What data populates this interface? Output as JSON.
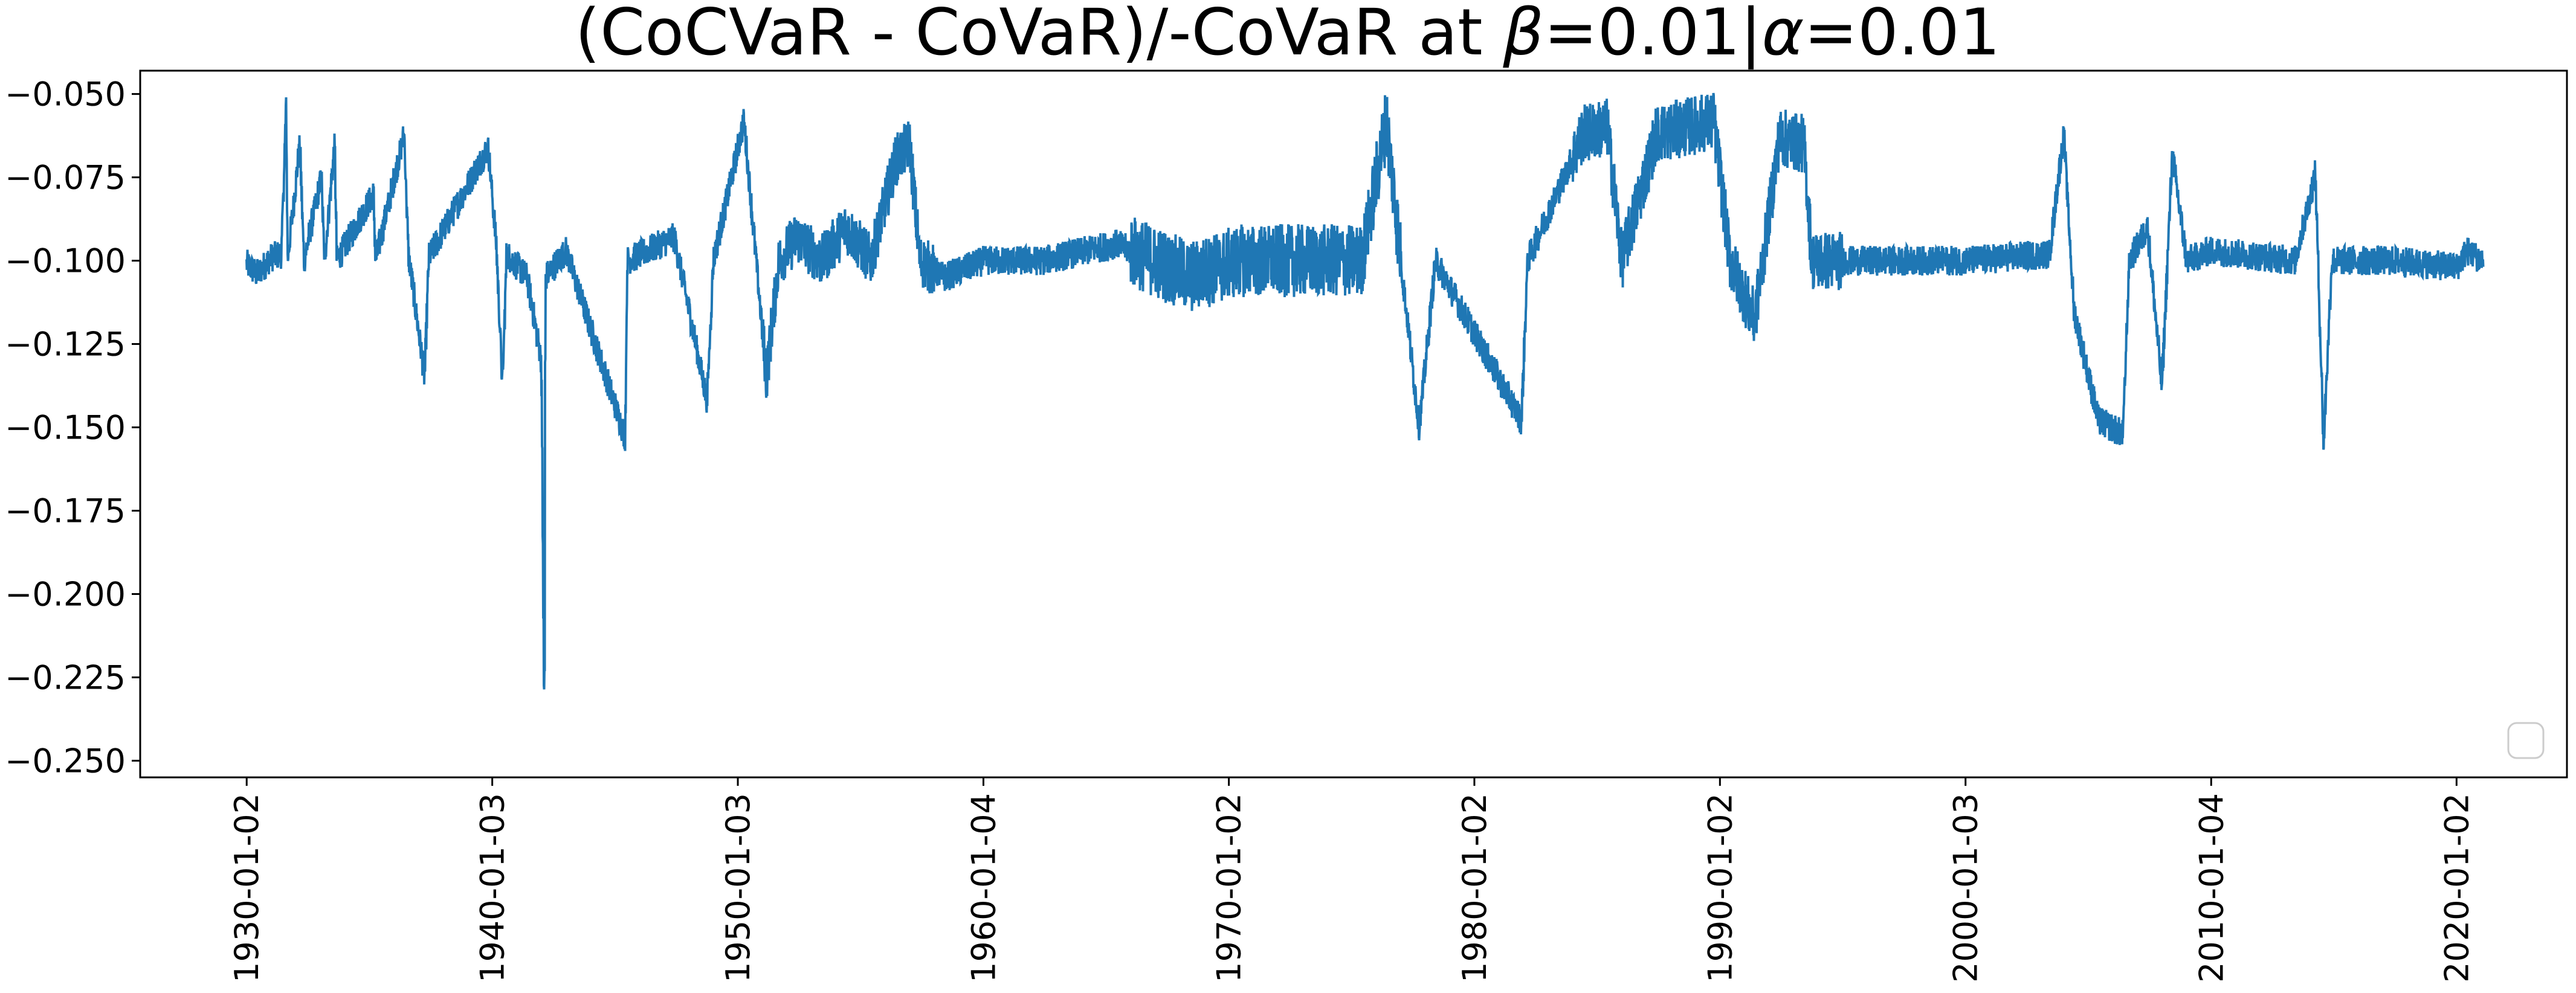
{
  "chart_data": {
    "type": "line",
    "title": "(CoCVaR - CoVaR)/-CoVaR at β=0.01|α=0.01",
    "title_parts": {
      "prefix": "(CoCVaR - CoVaR)/-CoVaR at ",
      "beta_symbol": "β",
      "beta_value": "=0.01|",
      "alpha_symbol": "α",
      "alpha_value": "=0.01"
    },
    "xlabel": "",
    "ylabel": "",
    "ylim": [
      -0.255,
      -0.043
    ],
    "xlim": [
      "1925-09-01",
      "2024-07-01"
    ],
    "grid": false,
    "legend": "bottom-right (empty)",
    "line_color": "#1f77b4",
    "y_ticks": [
      -0.05,
      -0.075,
      -0.1,
      -0.125,
      -0.15,
      -0.175,
      -0.2,
      -0.225,
      -0.25
    ],
    "y_tick_labels": [
      "−0.050",
      "−0.075",
      "−0.100",
      "−0.125",
      "−0.150",
      "−0.175",
      "−0.200",
      "−0.225",
      "−0.250"
    ],
    "x_ticks": [
      "1930-01-02",
      "1940-01-03",
      "1950-01-03",
      "1960-01-04",
      "1970-01-02",
      "1980-01-02",
      "1990-01-02",
      "2000-01-03",
      "2010-01-04",
      "2020-01-02"
    ],
    "series": [
      {
        "name": "",
        "x_range": [
          "1929-12-31",
          "2021-01-29"
        ],
        "baseline": -0.1,
        "notes": "daily series; approx band around baseline with excursions listed as key points",
        "points": [
          [
            "1929-12-31",
            -0.101
          ],
          [
            "1930-06-01",
            -0.104
          ],
          [
            "1931-01-01",
            -0.099
          ],
          [
            "1931-06-01",
            -0.098
          ],
          [
            "1931-08-10",
            -0.053
          ],
          [
            "1931-09-01",
            -0.1
          ],
          [
            "1932-03-01",
            -0.065
          ],
          [
            "1932-05-01",
            -0.1
          ],
          [
            "1933-01-15",
            -0.075
          ],
          [
            "1933-03-01",
            -0.1
          ],
          [
            "1933-08-01",
            -0.065
          ],
          [
            "1933-09-01",
            -0.1
          ],
          [
            "1935-03-01",
            -0.08
          ],
          [
            "1935-04-01",
            -0.1
          ],
          [
            "1936-06-01",
            -0.062
          ],
          [
            "1936-08-01",
            -0.098
          ],
          [
            "1937-04-01",
            -0.135
          ],
          [
            "1937-06-01",
            -0.099
          ],
          [
            "1939-11-01",
            -0.066
          ],
          [
            "1940-03-01",
            -0.095
          ],
          [
            "1940-06-01",
            -0.138
          ],
          [
            "1940-08-01",
            -0.098
          ],
          [
            "1941-06-01",
            -0.105
          ],
          [
            "1942-01-01",
            -0.13
          ],
          [
            "1942-02-15",
            -0.246
          ],
          [
            "1942-03-01",
            -0.105
          ],
          [
            "1943-01-01",
            -0.097
          ],
          [
            "1945-06-01",
            -0.153
          ],
          [
            "1945-07-01",
            -0.1
          ],
          [
            "1947-06-01",
            -0.093
          ],
          [
            "1948-10-01",
            -0.142
          ],
          [
            "1949-01-01",
            -0.1
          ],
          [
            "1950-04-01",
            -0.058
          ],
          [
            "1950-10-01",
            -0.1
          ],
          [
            "1951-03-01",
            -0.135
          ],
          [
            "1951-09-01",
            -0.1
          ],
          [
            "1952-06-01",
            -0.093
          ],
          [
            "1953-06-01",
            -0.1
          ],
          [
            "1954-06-01",
            -0.09
          ],
          [
            "1955-06-01",
            -0.1
          ],
          [
            "1956-06-01",
            -0.07
          ],
          [
            "1957-01-01",
            -0.065
          ],
          [
            "1957-06-01",
            -0.1
          ],
          [
            "1958-06-01",
            -0.105
          ],
          [
            "1960-01-04",
            -0.1
          ],
          [
            "1962-06-01",
            -0.1
          ],
          [
            "1965-06-01",
            -0.095
          ],
          [
            "1968-06-01",
            -0.105
          ],
          [
            "1970-06-01",
            -0.1
          ],
          [
            "1973-06-01",
            -0.1
          ],
          [
            "1975-06-01",
            -0.1
          ],
          [
            "1976-06-01",
            -0.058
          ],
          [
            "1977-01-01",
            -0.1
          ],
          [
            "1977-10-01",
            -0.15
          ],
          [
            "1978-06-01",
            -0.1
          ],
          [
            "1981-12-01",
            -0.148
          ],
          [
            "1982-03-01",
            -0.1
          ],
          [
            "1984-06-01",
            -0.062
          ],
          [
            "1985-06-01",
            -0.06
          ],
          [
            "1986-01-01",
            -0.1
          ],
          [
            "1987-06-01",
            -0.062
          ],
          [
            "1989-10-01",
            -0.058
          ],
          [
            "1990-06-01",
            -0.1
          ],
          [
            "1991-06-01",
            -0.118
          ],
          [
            "1992-06-01",
            -0.063
          ],
          [
            "1993-06-01",
            -0.065
          ],
          [
            "1993-10-01",
            -0.1
          ],
          [
            "1996-06-01",
            -0.1
          ],
          [
            "2000-01-03",
            -0.1
          ],
          [
            "2003-06-01",
            -0.098
          ],
          [
            "2004-01-01",
            -0.062
          ],
          [
            "2004-06-01",
            -0.115
          ],
          [
            "2005-06-01",
            -0.148
          ],
          [
            "2006-06-01",
            -0.152
          ],
          [
            "2006-09-01",
            -0.1
          ],
          [
            "2007-06-01",
            -0.09
          ],
          [
            "2008-01-01",
            -0.138
          ],
          [
            "2008-06-01",
            -0.068
          ],
          [
            "2009-01-01",
            -0.1
          ],
          [
            "2010-01-04",
            -0.097
          ],
          [
            "2013-06-01",
            -0.1
          ],
          [
            "2014-04-01",
            -0.074
          ],
          [
            "2014-08-01",
            -0.155
          ],
          [
            "2014-12-01",
            -0.1
          ],
          [
            "2017-06-01",
            -0.1
          ],
          [
            "2020-01-02",
            -0.102
          ],
          [
            "2020-06-01",
            -0.097
          ],
          [
            "2021-01-29",
            -0.1
          ]
        ]
      }
    ]
  }
}
